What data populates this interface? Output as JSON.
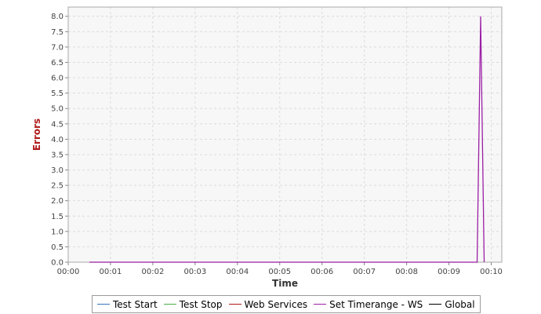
{
  "chart_data": {
    "type": "line",
    "xlabel": "Time",
    "ylabel": "Errors",
    "x_ticks": [
      "00:00",
      "00:01",
      "00:02",
      "00:03",
      "00:04",
      "00:05",
      "00:06",
      "00:07",
      "00:08",
      "00:09",
      "00:10"
    ],
    "y_ticks": [
      "0.0",
      "0.5",
      "1.0",
      "1.5",
      "2.0",
      "2.5",
      "3.0",
      "3.5",
      "4.0",
      "4.5",
      "5.0",
      "5.5",
      "6.0",
      "6.5",
      "7.0",
      "7.5",
      "8.0"
    ],
    "xlim": [
      "00:00",
      "00:10:15"
    ],
    "ylim": [
      0,
      8.3
    ],
    "grid": true,
    "legend_position": "bottom",
    "series": [
      {
        "name": "Test Start",
        "color": "#3a75b8",
        "points": []
      },
      {
        "name": "Test Stop",
        "color": "#4cae4c",
        "points": []
      },
      {
        "name": "Web Services",
        "color": "#b01b1b",
        "points": []
      },
      {
        "name": "Set Timerange - WS",
        "color": "#9b1fa5",
        "points": [
          {
            "x": "00:00:30",
            "y": 0
          },
          {
            "x": "00:09:40",
            "y": 0
          },
          {
            "x": "00:09:45",
            "y": 8
          },
          {
            "x": "00:09:50",
            "y": 0
          }
        ]
      },
      {
        "name": "Global",
        "color": "#000000",
        "points": []
      }
    ],
    "colors": {
      "plot_background": "#f7f7f7",
      "grid": "#dcdcdc",
      "axis_title_y": "#b01b1b",
      "axis_title_x": "#333333"
    }
  }
}
